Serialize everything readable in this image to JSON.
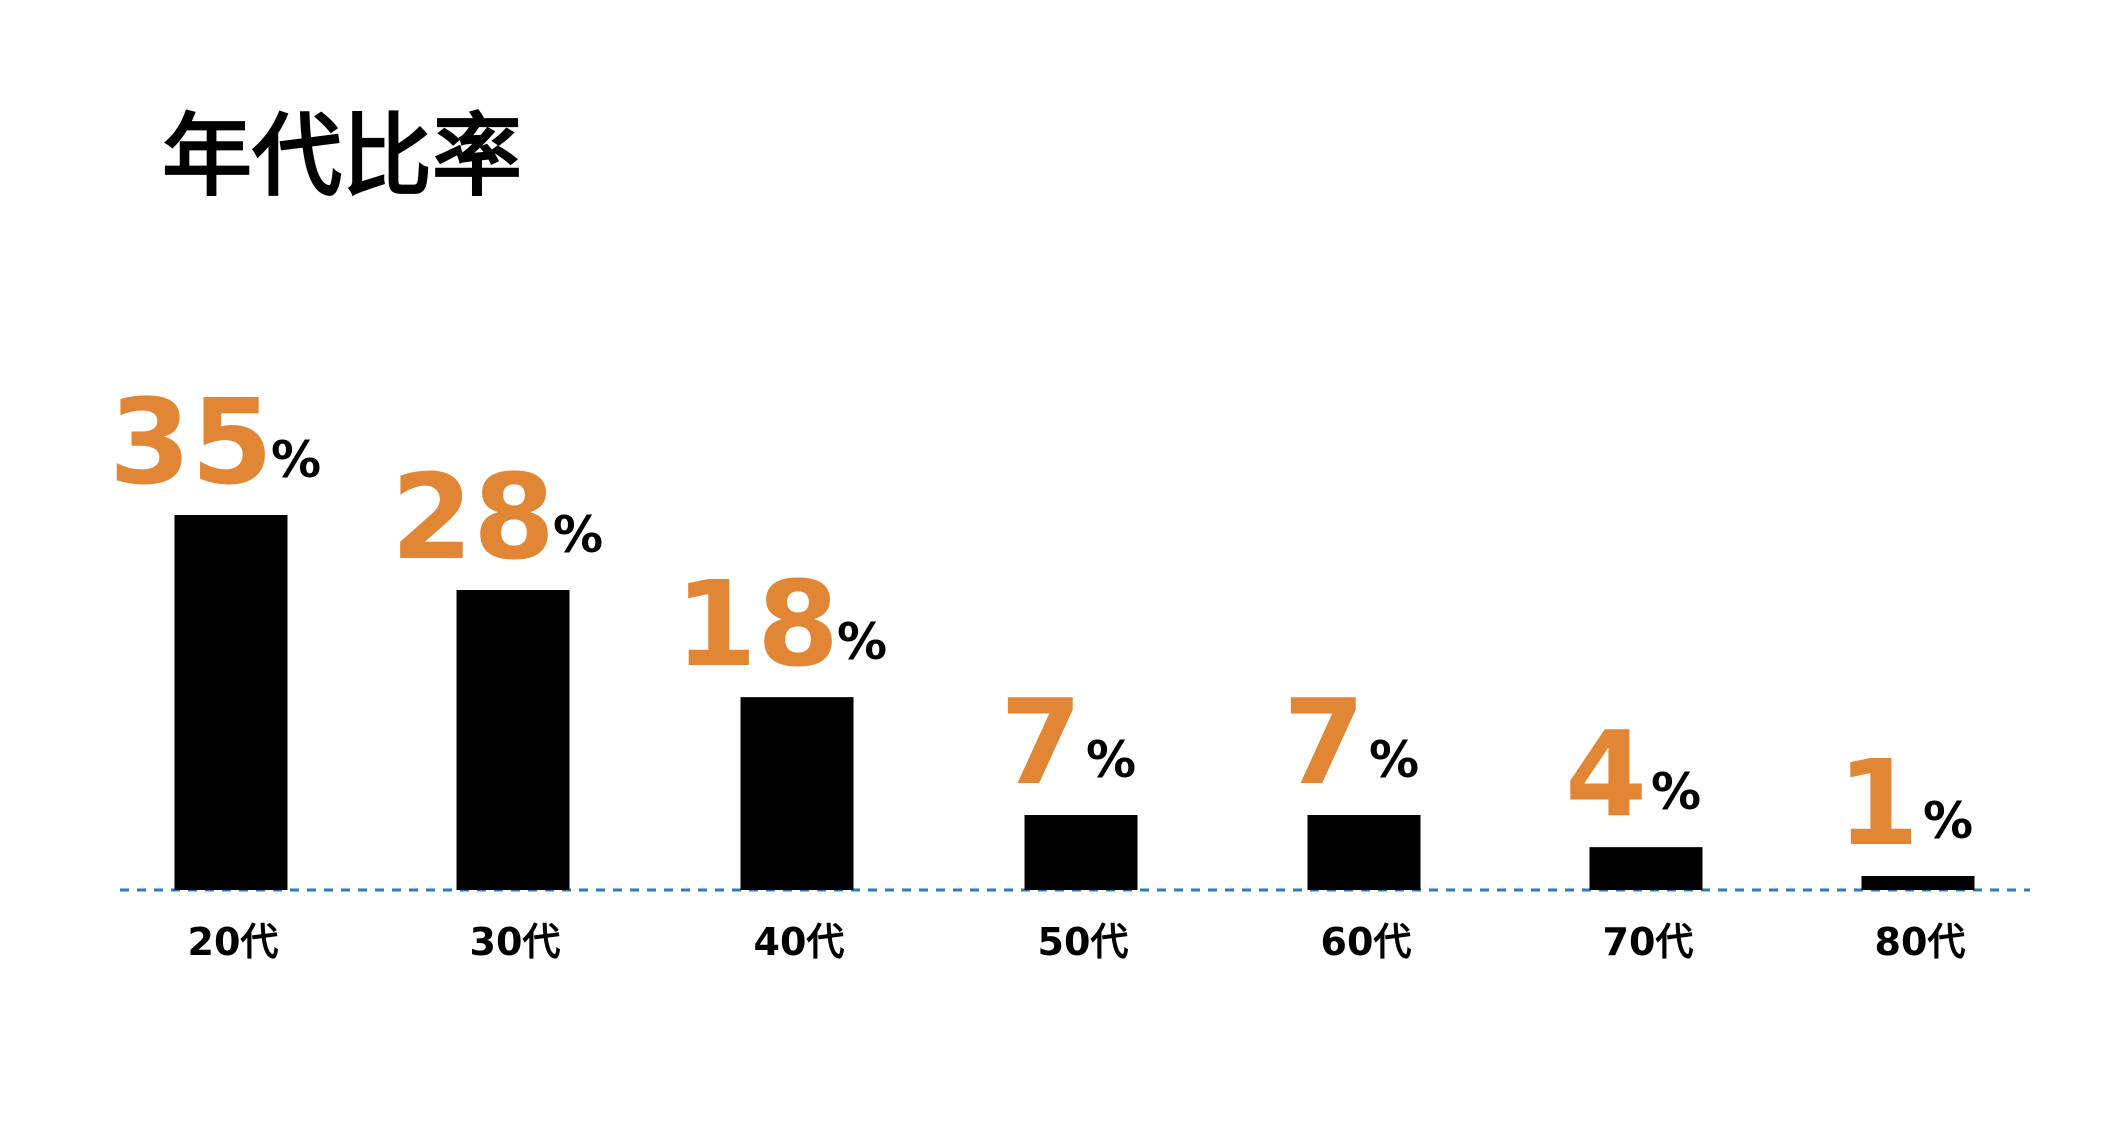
{
  "title": "年代比率",
  "chart_data": {
    "type": "bar",
    "title": "年代比率",
    "categories": [
      "20代",
      "30代",
      "40代",
      "50代",
      "60代",
      "70代",
      "80代"
    ],
    "values": [
      35,
      28,
      18,
      7,
      7,
      4,
      1
    ],
    "value_labels": [
      "35",
      "28",
      "18",
      "7",
      "7",
      "4",
      "1"
    ],
    "value_suffix": "%",
    "xlabel": "",
    "ylabel": "",
    "ylim": [
      0,
      35
    ],
    "grid": false,
    "legend": "none",
    "baseline_style": "dashed"
  },
  "colors": {
    "bar": "#000000",
    "value_label": "#e08635",
    "percent_sign": "#000000",
    "baseline": "#2b7bbf",
    "category_label": "#000000",
    "title": "#000000"
  }
}
